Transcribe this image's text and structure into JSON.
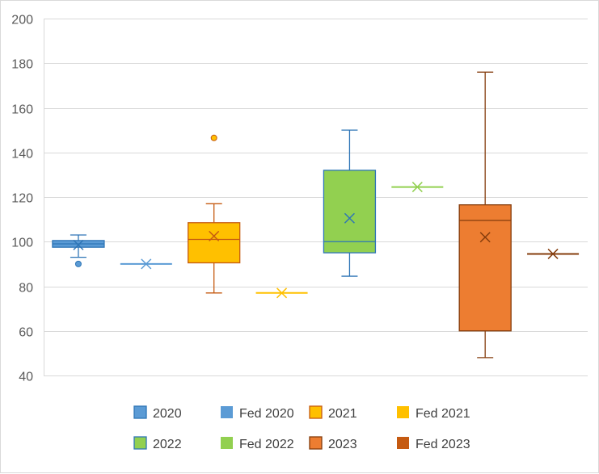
{
  "chart_data": {
    "type": "box",
    "title": "",
    "xlabel": "",
    "ylabel": "",
    "ylim": [
      40,
      200
    ],
    "yticks": [
      40,
      60,
      80,
      100,
      120,
      140,
      160,
      180,
      200
    ],
    "grid": true,
    "legend_position": "bottom",
    "series": [
      {
        "name": "2020",
        "kind": "box",
        "color": "#5b9bd5",
        "edge": "#2e75b6",
        "min": 93,
        "q1": 97.5,
        "median": 99,
        "q3": 100.5,
        "max": 103,
        "mean": 98.5,
        "outliers": [
          90
        ]
      },
      {
        "name": "Fed 2020",
        "kind": "point",
        "color": "#5b9bd5",
        "edge": "#5b9bd5",
        "value": 90
      },
      {
        "name": "2021",
        "kind": "box",
        "color": "#ffc000",
        "edge": "#c55a11",
        "min": 77,
        "q1": 90.5,
        "median": 101,
        "q3": 108.5,
        "max": 117,
        "mean": 102.5,
        "outliers": [
          146.5
        ]
      },
      {
        "name": "Fed 2021",
        "kind": "point",
        "color": "#ffc000",
        "edge": "#ffc000",
        "value": 77
      },
      {
        "name": "2022",
        "kind": "box",
        "color": "#92d050",
        "edge": "#2e75b6",
        "min": 84.5,
        "q1": 95,
        "median": 100,
        "q3": 132,
        "max": 150,
        "mean": 110.5,
        "outliers": []
      },
      {
        "name": "Fed 2022",
        "kind": "point",
        "color": "#92d050",
        "edge": "#92d050",
        "value": 124.5
      },
      {
        "name": "2023",
        "kind": "box",
        "color": "#ed7d31",
        "edge": "#843c0c",
        "min": 48,
        "q1": 60,
        "median": 109.5,
        "q3": 116.5,
        "max": 176,
        "mean": 102,
        "outliers": []
      },
      {
        "name": "Fed 2023",
        "kind": "point",
        "color": "#c55a11",
        "edge": "#843c0c",
        "value": 94.5
      }
    ]
  }
}
